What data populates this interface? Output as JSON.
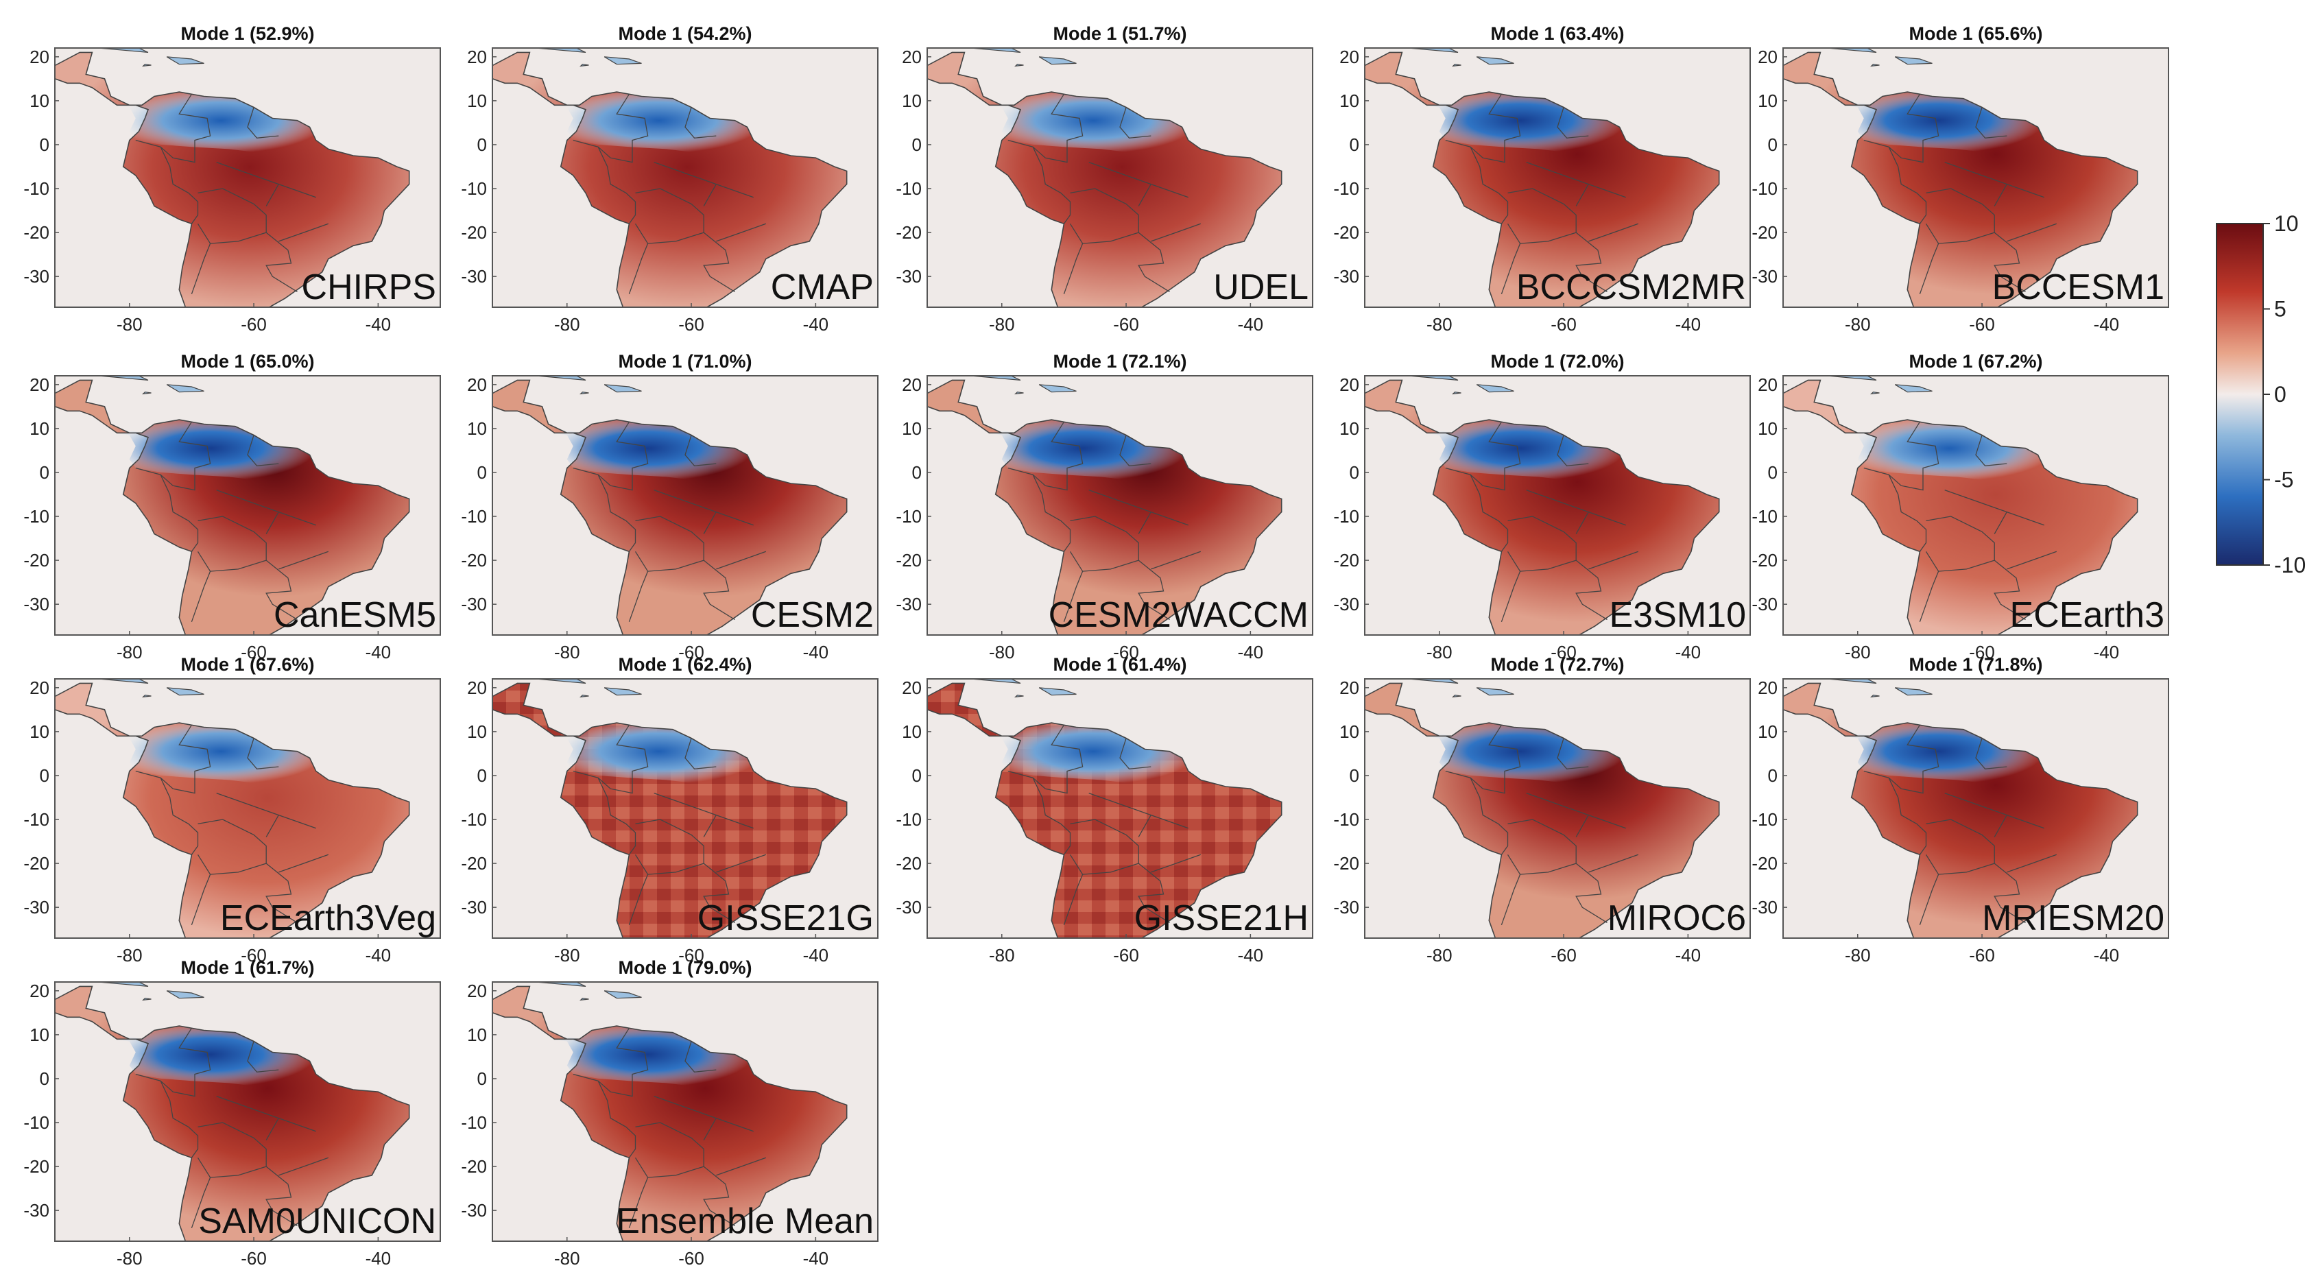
{
  "figure": {
    "colorbar": {
      "ticks": [
        "10",
        "5",
        "0",
        "-5",
        "-10"
      ],
      "range": [
        -10,
        10
      ],
      "colors": [
        "#1a2a6c",
        "#2d6fc0",
        "#8fb8dc",
        "#f3ecea",
        "#e8a58a",
        "#c0392b",
        "#6b0d12"
      ]
    },
    "map": {
      "background": "#efeae8",
      "ocean": "#ffffff",
      "border_color": "#444444",
      "lon_ticks": [
        -80,
        -60,
        -40
      ],
      "lat_ticks": [
        20,
        10,
        0,
        -10,
        -20,
        -30
      ]
    },
    "panels": [
      {
        "title": "Mode 1 (52.9%)",
        "label": "CHIRPS",
        "variance_pct": 52.9,
        "pattern": "obs"
      },
      {
        "title": "Mode 1 (54.2%)",
        "label": "CMAP",
        "variance_pct": 54.2,
        "pattern": "obs"
      },
      {
        "title": "Mode 1 (51.7%)",
        "label": "UDEL",
        "variance_pct": 51.7,
        "pattern": "obs"
      },
      {
        "title": "Mode 1 (63.4%)",
        "label": "BCCCSM2MR",
        "variance_pct": 63.4,
        "pattern": "model"
      },
      {
        "title": "Mode 1 (65.6%)",
        "label": "BCCESM1",
        "variance_pct": 65.6,
        "pattern": "model"
      },
      {
        "title": "Mode 1 (65.0%)",
        "label": "CanESM5",
        "variance_pct": 65.0,
        "pattern": "strong"
      },
      {
        "title": "Mode 1 (71.0%)",
        "label": "CESM2",
        "variance_pct": 71.0,
        "pattern": "strong"
      },
      {
        "title": "Mode 1 (72.1%)",
        "label": "CESM2WACCM",
        "variance_pct": 72.1,
        "pattern": "strong"
      },
      {
        "title": "Mode 1 (72.0%)",
        "label": "E3SM10",
        "variance_pct": 72.0,
        "pattern": "model"
      },
      {
        "title": "Mode 1 (67.2%)",
        "label": "ECEarth3",
        "variance_pct": 67.2,
        "pattern": "weak"
      },
      {
        "title": "Mode 1 (67.6%)",
        "label": "ECEarth3Veg",
        "variance_pct": 67.6,
        "pattern": "weak"
      },
      {
        "title": "Mode 1 (62.4%)",
        "label": "GISSE21G",
        "variance_pct": 62.4,
        "pattern": "blocky"
      },
      {
        "title": "Mode 1 (61.4%)",
        "label": "GISSE21H",
        "variance_pct": 61.4,
        "pattern": "blocky"
      },
      {
        "title": "Mode 1 (72.7%)",
        "label": "MIROC6",
        "variance_pct": 72.7,
        "pattern": "strong"
      },
      {
        "title": "Mode 1 (71.8%)",
        "label": "MRIESM20",
        "variance_pct": 71.8,
        "pattern": "model"
      },
      {
        "title": "Mode 1 (61.7%)",
        "label": "SAM0UNICON",
        "variance_pct": 61.7,
        "pattern": "model"
      },
      {
        "title": "Mode 1 (79.0%)",
        "label": "Ensemble Mean",
        "variance_pct": 79.0,
        "pattern": "model"
      }
    ]
  }
}
